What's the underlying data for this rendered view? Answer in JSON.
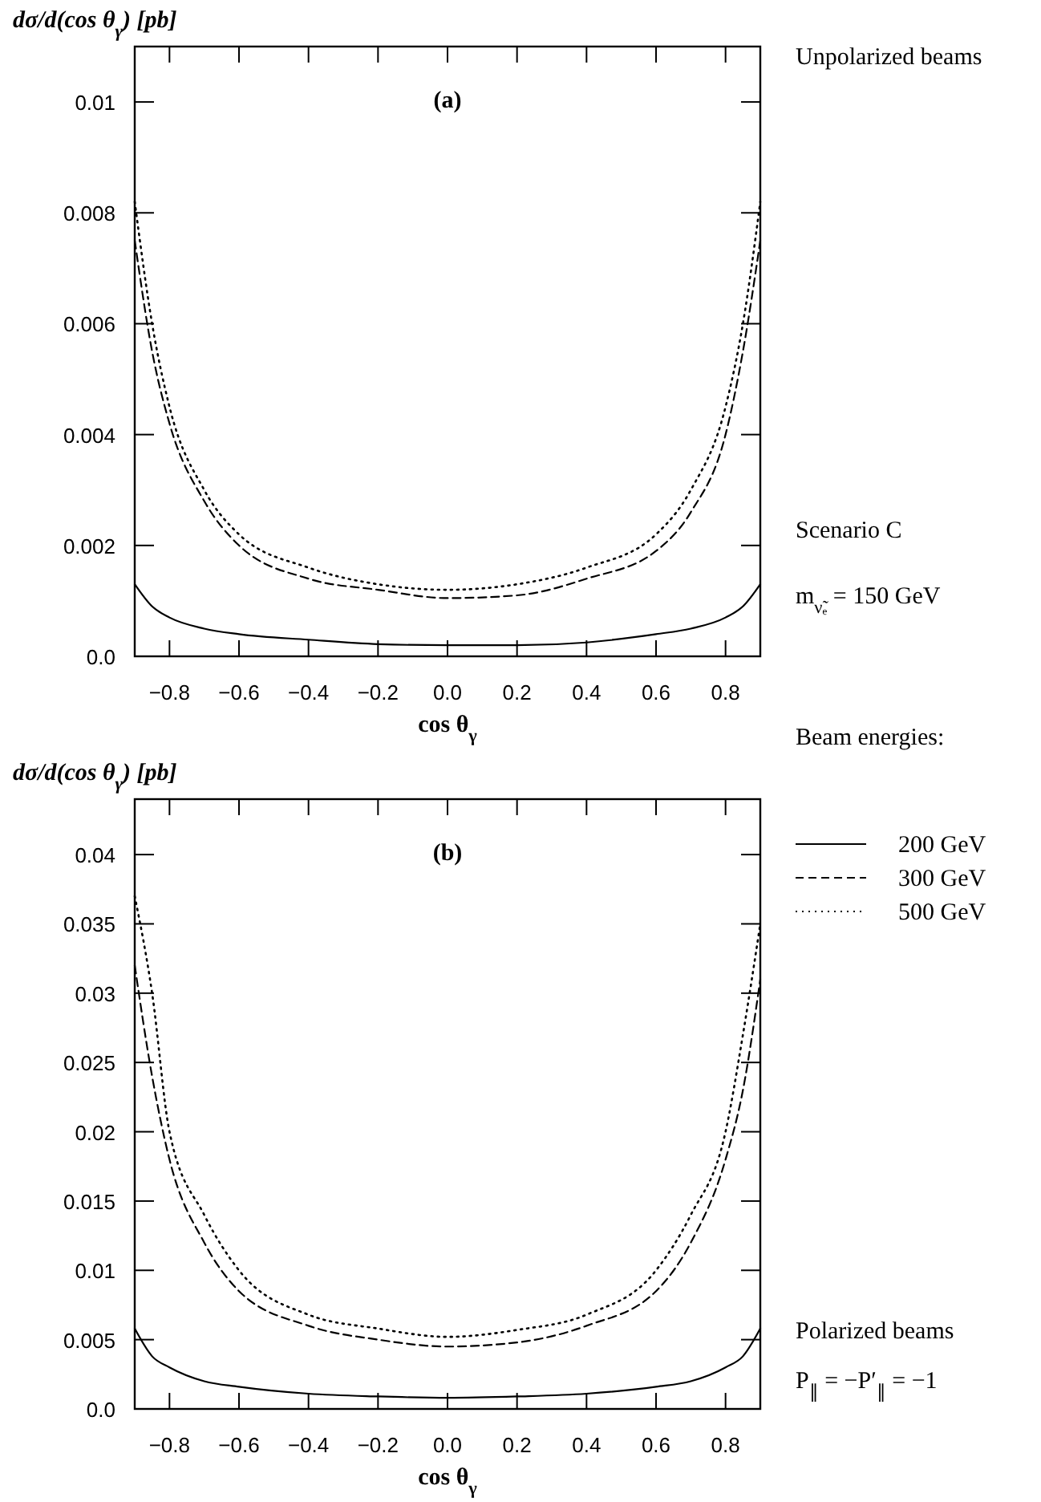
{
  "chart_data": [
    {
      "type": "line",
      "ylabel": "dσ/d(cos θ$_{γ}$) [pb]",
      "xlabel": "cos θ$_{γ}$",
      "x": [
        -0.9,
        -0.85,
        -0.8,
        -0.7,
        -0.6,
        -0.4,
        -0.2,
        0,
        0.2,
        0.4,
        0.6,
        0.7,
        0.8,
        0.85,
        0.9
      ],
      "series": [
        {
          "color": "#000000",
          "line_style": "solid",
          "values": [
            0.0013,
            0.0009,
            0.0007,
            0.0005,
            0.0004,
            0.0003,
            0.00022,
            0.0002,
            0.0002,
            0.00025,
            0.0004,
            0.0005,
            0.0007,
            0.0009,
            0.0013
          ]
        },
        {
          "color": "#000000",
          "line_style": "dashed",
          "values": [
            0.0075,
            0.0055,
            0.0042,
            0.0028,
            0.002,
            0.0014,
            0.0012,
            0.00105,
            0.0011,
            0.0014,
            0.0019,
            0.0026,
            0.004,
            0.0055,
            0.0075
          ]
        },
        {
          "color": "#000000",
          "line_style": "dotted",
          "values": [
            0.0082,
            0.006,
            0.0045,
            0.003,
            0.0022,
            0.0016,
            0.0013,
            0.0012,
            0.0013,
            0.0016,
            0.0022,
            0.003,
            0.0045,
            0.006,
            0.0082
          ]
        }
      ],
      "xlim": [
        -0.9,
        0.9
      ],
      "xticks": [
        {
          "value": -0.8,
          "label": "−0.8"
        },
        {
          "value": -0.6,
          "label": "−0.6"
        },
        {
          "value": -0.4,
          "label": "−0.4"
        },
        {
          "value": -0.2,
          "label": "−0.2"
        },
        {
          "value": 0,
          "label": "0.0"
        },
        0.2,
        0.4,
        0.6,
        0.8
      ],
      "ylim": [
        0,
        0.011
      ],
      "yticks": [
        {
          "value": 0,
          "label": "0.0"
        },
        0.002,
        0.004,
        0.006,
        0.008,
        0.01
      ],
      "grid": false,
      "legend": false,
      "annotations": [
        "(a)",
        "Unpolarized beams",
        "Scenario C",
        "m$_{ν̃ₑ}$ = 150 GeV"
      ]
    },
    {
      "type": "line",
      "ylabel": "dσ/d(cos θ$_{γ}$) [pb]",
      "xlabel": "cos θ$_{γ}$",
      "x": [
        -0.9,
        -0.85,
        -0.8,
        -0.7,
        -0.6,
        -0.4,
        -0.2,
        0,
        0.2,
        0.4,
        0.6,
        0.7,
        0.8,
        0.85,
        0.9
      ],
      "series": [
        {
          "name": "200 GeV",
          "color": "#000000",
          "line_style": "solid",
          "values": [
            0.0058,
            0.0038,
            0.003,
            0.002,
            0.0016,
            0.0011,
            0.0009,
            0.0008,
            0.0009,
            0.0011,
            0.0016,
            0.002,
            0.003,
            0.0038,
            0.0058
          ]
        },
        {
          "name": "300 GeV",
          "color": "#000000",
          "line_style": "dashed",
          "values": [
            0.032,
            0.024,
            0.018,
            0.012,
            0.0085,
            0.006,
            0.005,
            0.0045,
            0.0048,
            0.006,
            0.0085,
            0.012,
            0.018,
            0.023,
            0.031
          ]
        },
        {
          "name": "500 GeV",
          "color": "#000000",
          "line_style": "dotted",
          "values": [
            0.037,
            0.03,
            0.02,
            0.014,
            0.01,
            0.0068,
            0.0058,
            0.0052,
            0.0057,
            0.0068,
            0.01,
            0.014,
            0.02,
            0.027,
            0.035
          ]
        }
      ],
      "xlim": [
        -0.9,
        0.9
      ],
      "xticks": [
        {
          "value": -0.8,
          "label": "−0.8"
        },
        {
          "value": -0.6,
          "label": "−0.6"
        },
        {
          "value": -0.4,
          "label": "−0.4"
        },
        {
          "value": -0.2,
          "label": "−0.2"
        },
        {
          "value": 0,
          "label": "0.0"
        },
        0.2,
        0.4,
        0.6,
        0.8
      ],
      "ylim": [
        0,
        0.044
      ],
      "yticks": [
        {
          "value": 0,
          "label": "0.0"
        },
        0.005,
        0.01,
        0.015,
        0.02,
        0.025,
        0.03,
        0.035,
        0.04
      ],
      "grid": false,
      "legend": "right",
      "legend_title": "Beam energies:",
      "annotations": [
        "(b)",
        "Polarized beams",
        "P$_{∥}$ = −P′$_{∥}$ = −1"
      ]
    }
  ]
}
